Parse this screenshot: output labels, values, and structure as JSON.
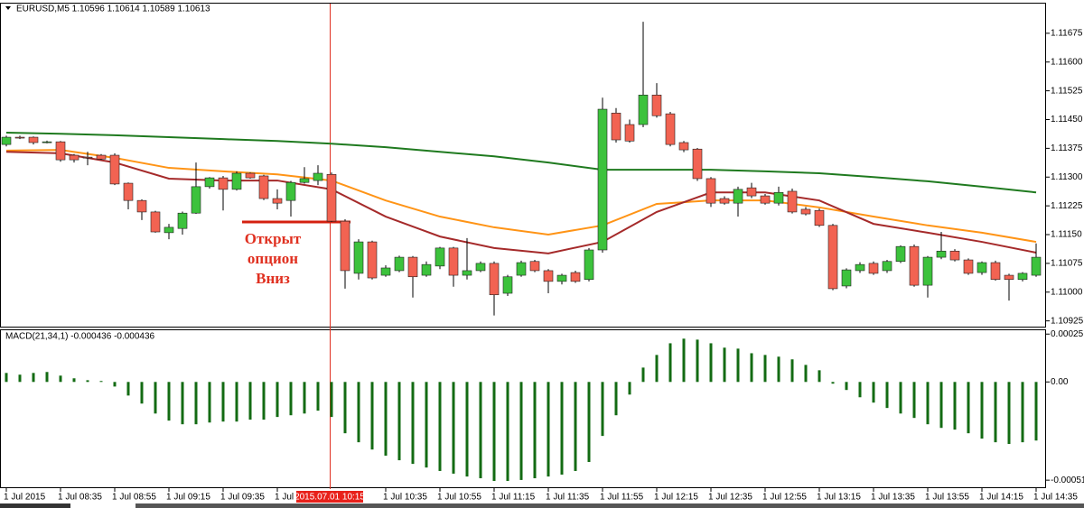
{
  "chart_data": [
    {
      "type": "candlestick",
      "title": "EURUSD,M5  1.10596 1.10614 1.10589 1.10613",
      "categories": [
        "1 Jul 2015",
        null,
        null,
        null,
        "1 Jul 08:35",
        null,
        null,
        null,
        "1 Jul 08:55",
        null,
        null,
        null,
        "1 Jul 09:15",
        null,
        null,
        null,
        "1 Jul 09:35",
        null,
        null,
        null,
        "1 Jul 09:55",
        null,
        null,
        null,
        null,
        null,
        null,
        null,
        "1 Jul 10:35",
        null,
        null,
        null,
        "1 Jul 10:55",
        null,
        null,
        null,
        "1 Jul 11:15",
        null,
        null,
        null,
        "1 Jul 11:35",
        null,
        null,
        null,
        "1 Jul 11:55",
        null,
        null,
        null,
        "1 Jul 12:15",
        null,
        null,
        null,
        "1 Jul 12:35",
        null,
        null,
        null,
        "1 Jul 12:55",
        null,
        null,
        null,
        "1 Jul 13:15",
        null,
        null,
        null,
        "1 Jul 13:35",
        null,
        null,
        null,
        "1 Jul 13:55",
        null,
        null,
        null,
        "1 Jul 14:15",
        null,
        null,
        null,
        "1 Jul 14:35"
      ],
      "open": [
        1.11385,
        1.11404,
        1.11404,
        1.1139,
        1.11392,
        1.11357,
        1.11352,
        1.11357,
        1.11357,
        1.11284,
        1.11239,
        1.11209,
        1.11155,
        1.11166,
        1.11206,
        1.11275,
        1.11298,
        1.11268,
        1.1131,
        1.11303,
        1.11244,
        1.11239,
        1.11286,
        1.11291,
        1.11307,
        1.11185,
        1.11049,
        1.11131,
        1.11044,
        1.11056,
        1.11091,
        1.11044,
        1.11068,
        1.11115,
        1.11044,
        1.11056,
        1.11075,
        1.10997,
        1.11044,
        1.1108,
        1.11056,
        1.11028,
        1.11051,
        1.11033,
        1.1111,
        1.11467,
        1.11437,
        1.11437,
        1.11514,
        1.11465,
        1.1139,
        1.11373,
        1.11296,
        1.11244,
        1.11232,
        1.11272,
        1.11251,
        1.11232,
        1.11263,
        1.11216,
        1.11213,
        1.11174,
        1.11016,
        1.11056,
        1.11075,
        1.11056,
        1.1108,
        1.11119,
        1.11018,
        1.11091,
        1.11107,
        1.11084,
        1.11051,
        1.11077,
        1.11044,
        1.11033,
        1.11044
      ],
      "high": [
        1.11408,
        1.11408,
        1.11406,
        1.11395,
        1.11394,
        1.1136,
        1.11366,
        1.1136,
        1.11362,
        1.11286,
        1.11242,
        1.11212,
        1.11178,
        1.1121,
        1.11338,
        1.113,
        1.11303,
        1.11315,
        1.11312,
        1.11306,
        1.11268,
        1.1129,
        1.11326,
        1.11331,
        1.11312,
        1.1119,
        1.11138,
        1.11134,
        1.1107,
        1.11095,
        1.11094,
        1.1108,
        1.11118,
        1.11118,
        1.11141,
        1.1108,
        1.1108,
        1.11045,
        1.11082,
        1.11084,
        1.1106,
        1.11048,
        1.11056,
        1.11115,
        1.11507,
        1.1148,
        1.1145,
        1.11705,
        1.11545,
        1.1147,
        1.11394,
        1.11376,
        1.113,
        1.1125,
        1.11275,
        1.11285,
        1.11256,
        1.11275,
        1.1127,
        1.11222,
        1.11218,
        1.11178,
        1.11062,
        1.11078,
        1.1108,
        1.11084,
        1.11122,
        1.11124,
        1.11094,
        1.11157,
        1.11112,
        1.11088,
        1.1108,
        1.11082,
        1.11048,
        1.11052,
        1.11127
      ],
      "low": [
        1.1138,
        1.11399,
        1.11385,
        1.11388,
        1.1134,
        1.11338,
        1.11331,
        1.11345,
        1.11279,
        1.11216,
        1.11188,
        1.11155,
        1.11138,
        1.1115,
        1.11204,
        1.1127,
        1.11213,
        1.11265,
        1.11296,
        1.1124,
        1.11216,
        1.11197,
        1.11283,
        1.11279,
        1.11183,
        1.11009,
        1.11033,
        1.11033,
        1.1104,
        1.11052,
        1.10986,
        1.1104,
        1.1106,
        1.11014,
        1.11033,
        1.11052,
        1.10939,
        1.1099,
        1.1104,
        1.11052,
        1.10997,
        1.1102,
        1.11024,
        1.11028,
        1.11103,
        1.1139,
        1.1139,
        1.1143,
        1.11455,
        1.1138,
        1.11365,
        1.1129,
        1.11222,
        1.11228,
        1.11197,
        1.11245,
        1.11228,
        1.11226,
        1.11205,
        1.112,
        1.1117,
        1.11005,
        1.1101,
        1.1105,
        1.11045,
        1.1105,
        1.11076,
        1.11014,
        1.10986,
        1.11086,
        1.1108,
        1.11045,
        1.11045,
        1.1103,
        1.10978,
        1.11028,
        1.1104
      ],
      "close": [
        1.11404,
        1.11402,
        1.1139,
        1.11392,
        1.11345,
        1.11345,
        1.1135,
        1.11347,
        1.11282,
        1.11239,
        1.11209,
        1.11157,
        1.11169,
        1.11206,
        1.11275,
        1.11298,
        1.11268,
        1.1131,
        1.11298,
        1.11244,
        1.11232,
        1.11286,
        1.11296,
        1.1131,
        1.11185,
        1.11056,
        1.11131,
        1.11037,
        1.11063,
        1.11091,
        1.1104,
        1.11072,
        1.11115,
        1.11044,
        1.11056,
        1.11075,
        1.10993,
        1.1104,
        1.11077,
        1.11056,
        1.11028,
        1.11044,
        1.11028,
        1.1111,
        1.11477,
        1.11397,
        1.11394,
        1.11514,
        1.1146,
        1.11385,
        1.11371,
        1.11296,
        1.11232,
        1.11232,
        1.11268,
        1.11251,
        1.11232,
        1.1126,
        1.11209,
        1.11204,
        1.11174,
        1.11009,
        1.11058,
        1.11072,
        1.11049,
        1.1108,
        1.11119,
        1.11018,
        1.11091,
        1.11107,
        1.11084,
        1.11049,
        1.11077,
        1.11033,
        1.11033,
        1.11049,
        1.11091
      ],
      "up_color": "#3cc23c",
      "down_color": "#f26352",
      "series": [
        {
          "color": "#1f7a1f",
          "x": [
            0,
            4,
            8,
            12,
            16,
            20,
            24,
            28,
            32,
            36,
            40,
            44,
            48,
            52,
            56,
            60,
            64,
            68,
            72,
            76
          ],
          "values": [
            1.11416,
            1.11413,
            1.11409,
            1.11404,
            1.11399,
            1.11394,
            1.11387,
            1.11378,
            1.11366,
            1.11354,
            1.11338,
            1.11319,
            1.11319,
            1.11319,
            1.11315,
            1.1131,
            1.113,
            1.11289,
            1.11275,
            1.1126
          ]
        },
        {
          "color": "#ff9416",
          "x": [
            0,
            4,
            8,
            12,
            16,
            20,
            24,
            28,
            32,
            36,
            40,
            44,
            48,
            52,
            56,
            60,
            64,
            68,
            72,
            76
          ],
          "values": [
            1.11369,
            1.11371,
            1.1135,
            1.11324,
            1.11315,
            1.11307,
            1.11291,
            1.11239,
            1.11197,
            1.11169,
            1.1115,
            1.11174,
            1.1123,
            1.11239,
            1.11239,
            1.11221,
            1.11197,
            1.11174,
            1.11155,
            1.11131
          ]
        },
        {
          "color": "#a52a2a",
          "x": [
            0,
            4,
            8,
            12,
            16,
            20,
            24,
            28,
            32,
            36,
            40,
            44,
            48,
            52,
            56,
            60,
            64,
            68,
            72,
            76
          ],
          "values": [
            1.11366,
            1.11362,
            1.11338,
            1.11296,
            1.11291,
            1.11291,
            1.11268,
            1.11197,
            1.11145,
            1.11115,
            1.11101,
            1.11131,
            1.11209,
            1.1126,
            1.1126,
            1.11239,
            1.11178,
            1.11155,
            1.11131,
            1.11103
          ]
        }
      ],
      "ylim": [
        1.1091,
        1.1175
      ],
      "yticks": [
        1.11675,
        {
          "value": 1.116,
          "label": "1.11600"
        },
        1.11525,
        {
          "value": 1.1145,
          "label": "1.11450"
        },
        1.11375,
        {
          "value": 1.113,
          "label": "1.11300"
        },
        1.11225,
        {
          "value": 1.1115,
          "label": "1.11150"
        },
        1.11075,
        {
          "value": 1.11,
          "label": "1.11000"
        },
        1.10925
      ],
      "annotation": [
        "Открыт",
        "опцион",
        "Вниз"
      ],
      "cursor_label": "2015.07.01 10:15"
    },
    {
      "type": "bar",
      "title": "MACD(21,34,1) -0.000436 -0.000436",
      "color": "#136b13",
      "values": [
        4.7e-05,
        3.8e-05,
        4.7e-05,
        5.2e-05,
        3.3e-05,
        1.9e-05,
        9e-06,
        5e-06,
        -2.4e-05,
        -7.1e-05,
        -0.000113,
        -0.000165,
        -0.000202,
        -0.000221,
        -0.000221,
        -0.000212,
        -0.000207,
        -0.000207,
        -0.000197,
        -0.000197,
        -0.000183,
        -0.000174,
        -0.000165,
        -0.00015,
        -0.000183,
        -0.000268,
        -0.000315,
        -0.000353,
        -0.000385,
        -0.000409,
        -0.000428,
        -0.000447,
        -0.000465,
        -0.000479,
        -0.000494,
        -0.000503,
        -0.000517,
        -0.000517,
        -0.000512,
        -0.000503,
        -0.000494,
        -0.000484,
        -0.000465,
        -0.000418,
        -0.000282,
        -0.000174,
        -6.6e-05,
        7.5e-05,
        0.000141,
        0.000202,
        0.000226,
        0.000221,
        0.000202,
        0.000179,
        0.000174,
        0.00015,
        0.000141,
        0.000132,
        0.000118,
        8.9e-05,
        6.1e-05,
        -9e-06,
        -4.2e-05,
        -8e-05,
        -0.000108,
        -0.000136,
        -0.000165,
        -0.000188,
        -0.000221,
        -0.00024,
        -0.000249,
        -0.000268,
        -0.000296,
        -0.000315,
        -0.000324,
        -0.000315,
        -0.000306
      ],
      "ylim": [
        -0.00055,
        0.00027
      ],
      "yticks": [
        0.00025,
        {
          "value": 0,
          "label": "0.00"
        },
        -0.000513
      ]
    }
  ]
}
